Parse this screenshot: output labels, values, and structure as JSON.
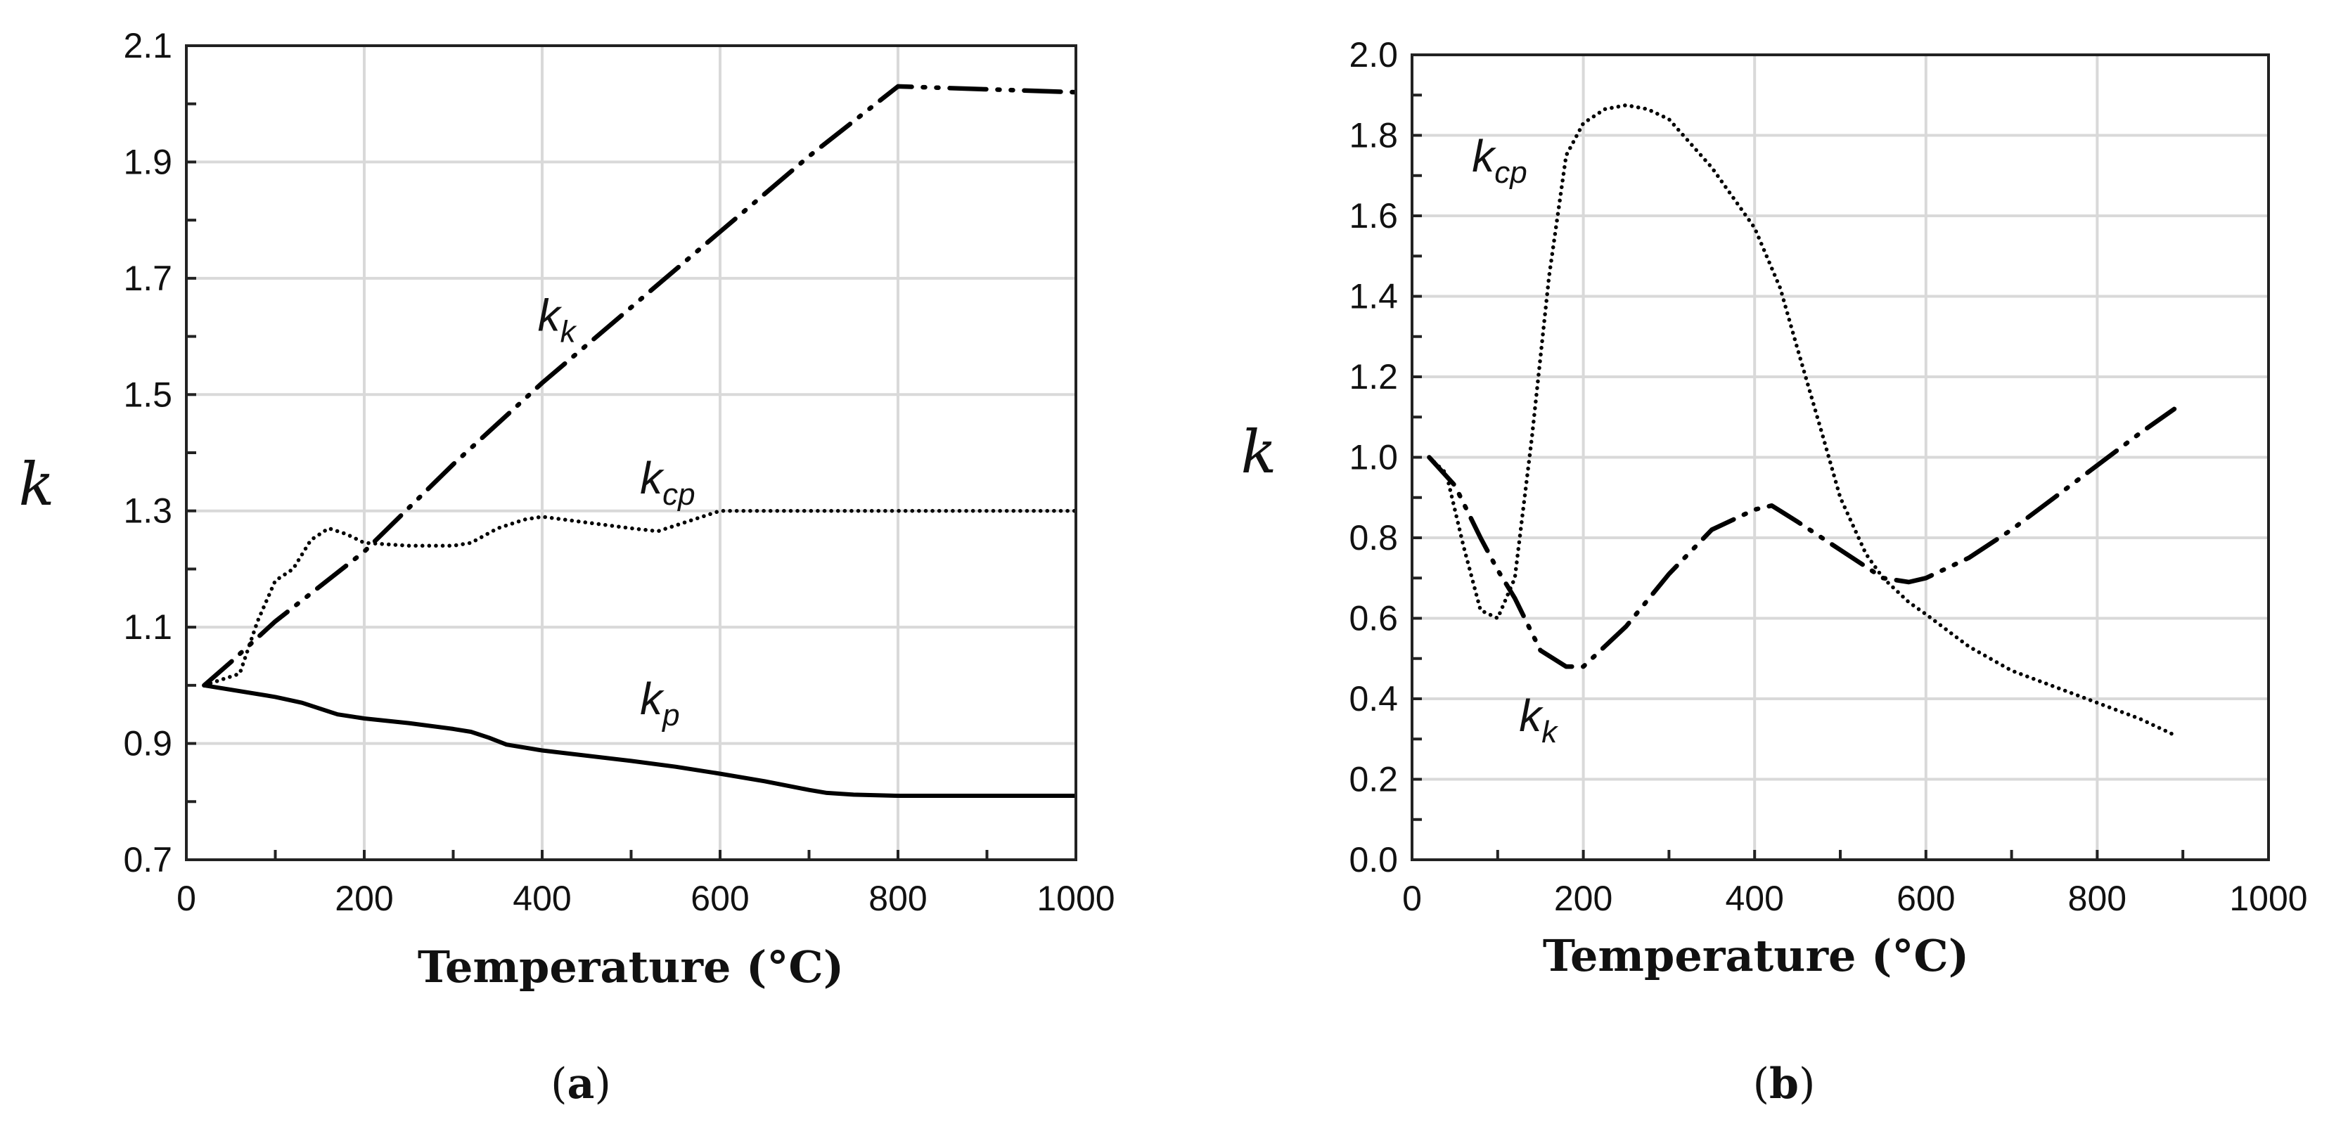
{
  "chart_data": [
    {
      "type": "line",
      "panel": "a",
      "caption_letter": "a",
      "xlabel": "Temperature (°C)",
      "ylabel": "k",
      "xlim": [
        0,
        1000
      ],
      "ylim": [
        0.7,
        2.1
      ],
      "grid": true,
      "xticks": [
        "0",
        "200",
        "400",
        "600",
        "800",
        "1000"
      ],
      "yticks": [
        "0.7",
        "0.9",
        "1.1",
        "1.3",
        "1.5",
        "1.7",
        "1.9",
        "2.1"
      ],
      "series": [
        {
          "name": "k_k",
          "base": "k",
          "sub": "k",
          "style": "dashdotdot",
          "label_at": [
            395,
            1.61
          ],
          "x": [
            20,
            50,
            100,
            200,
            300,
            400,
            500,
            600,
            700,
            800,
            1000
          ],
          "y": [
            1.0,
            1.04,
            1.11,
            1.23,
            1.38,
            1.52,
            1.65,
            1.78,
            1.91,
            2.03,
            2.02
          ]
        },
        {
          "name": "k_cp",
          "base": "k",
          "sub": "cp",
          "style": "dotted",
          "label_at": [
            510,
            1.33
          ],
          "x": [
            20,
            60,
            80,
            100,
            120,
            140,
            160,
            180,
            200,
            250,
            300,
            320,
            350,
            380,
            400,
            450,
            500,
            530,
            560,
            600,
            620,
            800,
            1000
          ],
          "y": [
            1.0,
            1.02,
            1.11,
            1.18,
            1.2,
            1.25,
            1.27,
            1.26,
            1.245,
            1.24,
            1.24,
            1.245,
            1.27,
            1.285,
            1.29,
            1.28,
            1.27,
            1.265,
            1.28,
            1.3,
            1.3,
            1.3,
            1.3
          ]
        },
        {
          "name": "k_p",
          "base": "k",
          "sub": "p",
          "style": "solid",
          "label_at": [
            510,
            0.95
          ],
          "x": [
            20,
            100,
            130,
            170,
            200,
            250,
            300,
            320,
            340,
            360,
            400,
            500,
            550,
            600,
            650,
            700,
            720,
            750,
            800,
            1000
          ],
          "y": [
            1.0,
            0.98,
            0.97,
            0.95,
            0.943,
            0.935,
            0.925,
            0.92,
            0.91,
            0.898,
            0.888,
            0.87,
            0.86,
            0.848,
            0.835,
            0.82,
            0.815,
            0.812,
            0.81,
            0.81
          ]
        }
      ]
    },
    {
      "type": "line",
      "panel": "b",
      "caption_letter": "b",
      "xlabel": "Temperature (°C)",
      "ylabel": "k",
      "xlim": [
        0,
        1000
      ],
      "ylim": [
        0.0,
        2.0
      ],
      "grid": true,
      "xticks": [
        "0",
        "200",
        "400",
        "600",
        "800",
        "1000"
      ],
      "yticks": [
        "0.0",
        "0.2",
        "0.4",
        "0.6",
        "0.8",
        "1.0",
        "1.2",
        "1.4",
        "1.6",
        "1.8",
        "2.0"
      ],
      "series": [
        {
          "name": "k_cp",
          "base": "k",
          "sub": "cp",
          "style": "dotted",
          "label_at": [
            70,
            1.71
          ],
          "x": [
            20,
            40,
            60,
            80,
            100,
            120,
            140,
            160,
            180,
            200,
            225,
            250,
            275,
            300,
            350,
            400,
            430,
            450,
            480,
            500,
            530,
            550,
            580,
            600,
            650,
            700,
            750,
            800,
            850,
            890
          ],
          "y": [
            1.0,
            0.96,
            0.78,
            0.62,
            0.6,
            0.7,
            1.05,
            1.45,
            1.75,
            1.83,
            1.865,
            1.875,
            1.865,
            1.84,
            1.72,
            1.57,
            1.42,
            1.27,
            1.05,
            0.9,
            0.76,
            0.7,
            0.64,
            0.61,
            0.53,
            0.47,
            0.43,
            0.39,
            0.35,
            0.31
          ]
        },
        {
          "name": "k_k",
          "base": "k",
          "sub": "k",
          "style": "dashdotdot",
          "label_at": [
            125,
            0.32
          ],
          "x": [
            20,
            50,
            80,
            100,
            120,
            150,
            180,
            200,
            250,
            300,
            350,
            400,
            420,
            450,
            500,
            550,
            580,
            600,
            650,
            700,
            750,
            800,
            850,
            890
          ],
          "y": [
            1.0,
            0.93,
            0.8,
            0.72,
            0.65,
            0.52,
            0.48,
            0.48,
            0.58,
            0.71,
            0.82,
            0.87,
            0.88,
            0.84,
            0.77,
            0.7,
            0.69,
            0.7,
            0.75,
            0.82,
            0.9,
            0.98,
            1.06,
            1.12
          ]
        }
      ]
    }
  ]
}
